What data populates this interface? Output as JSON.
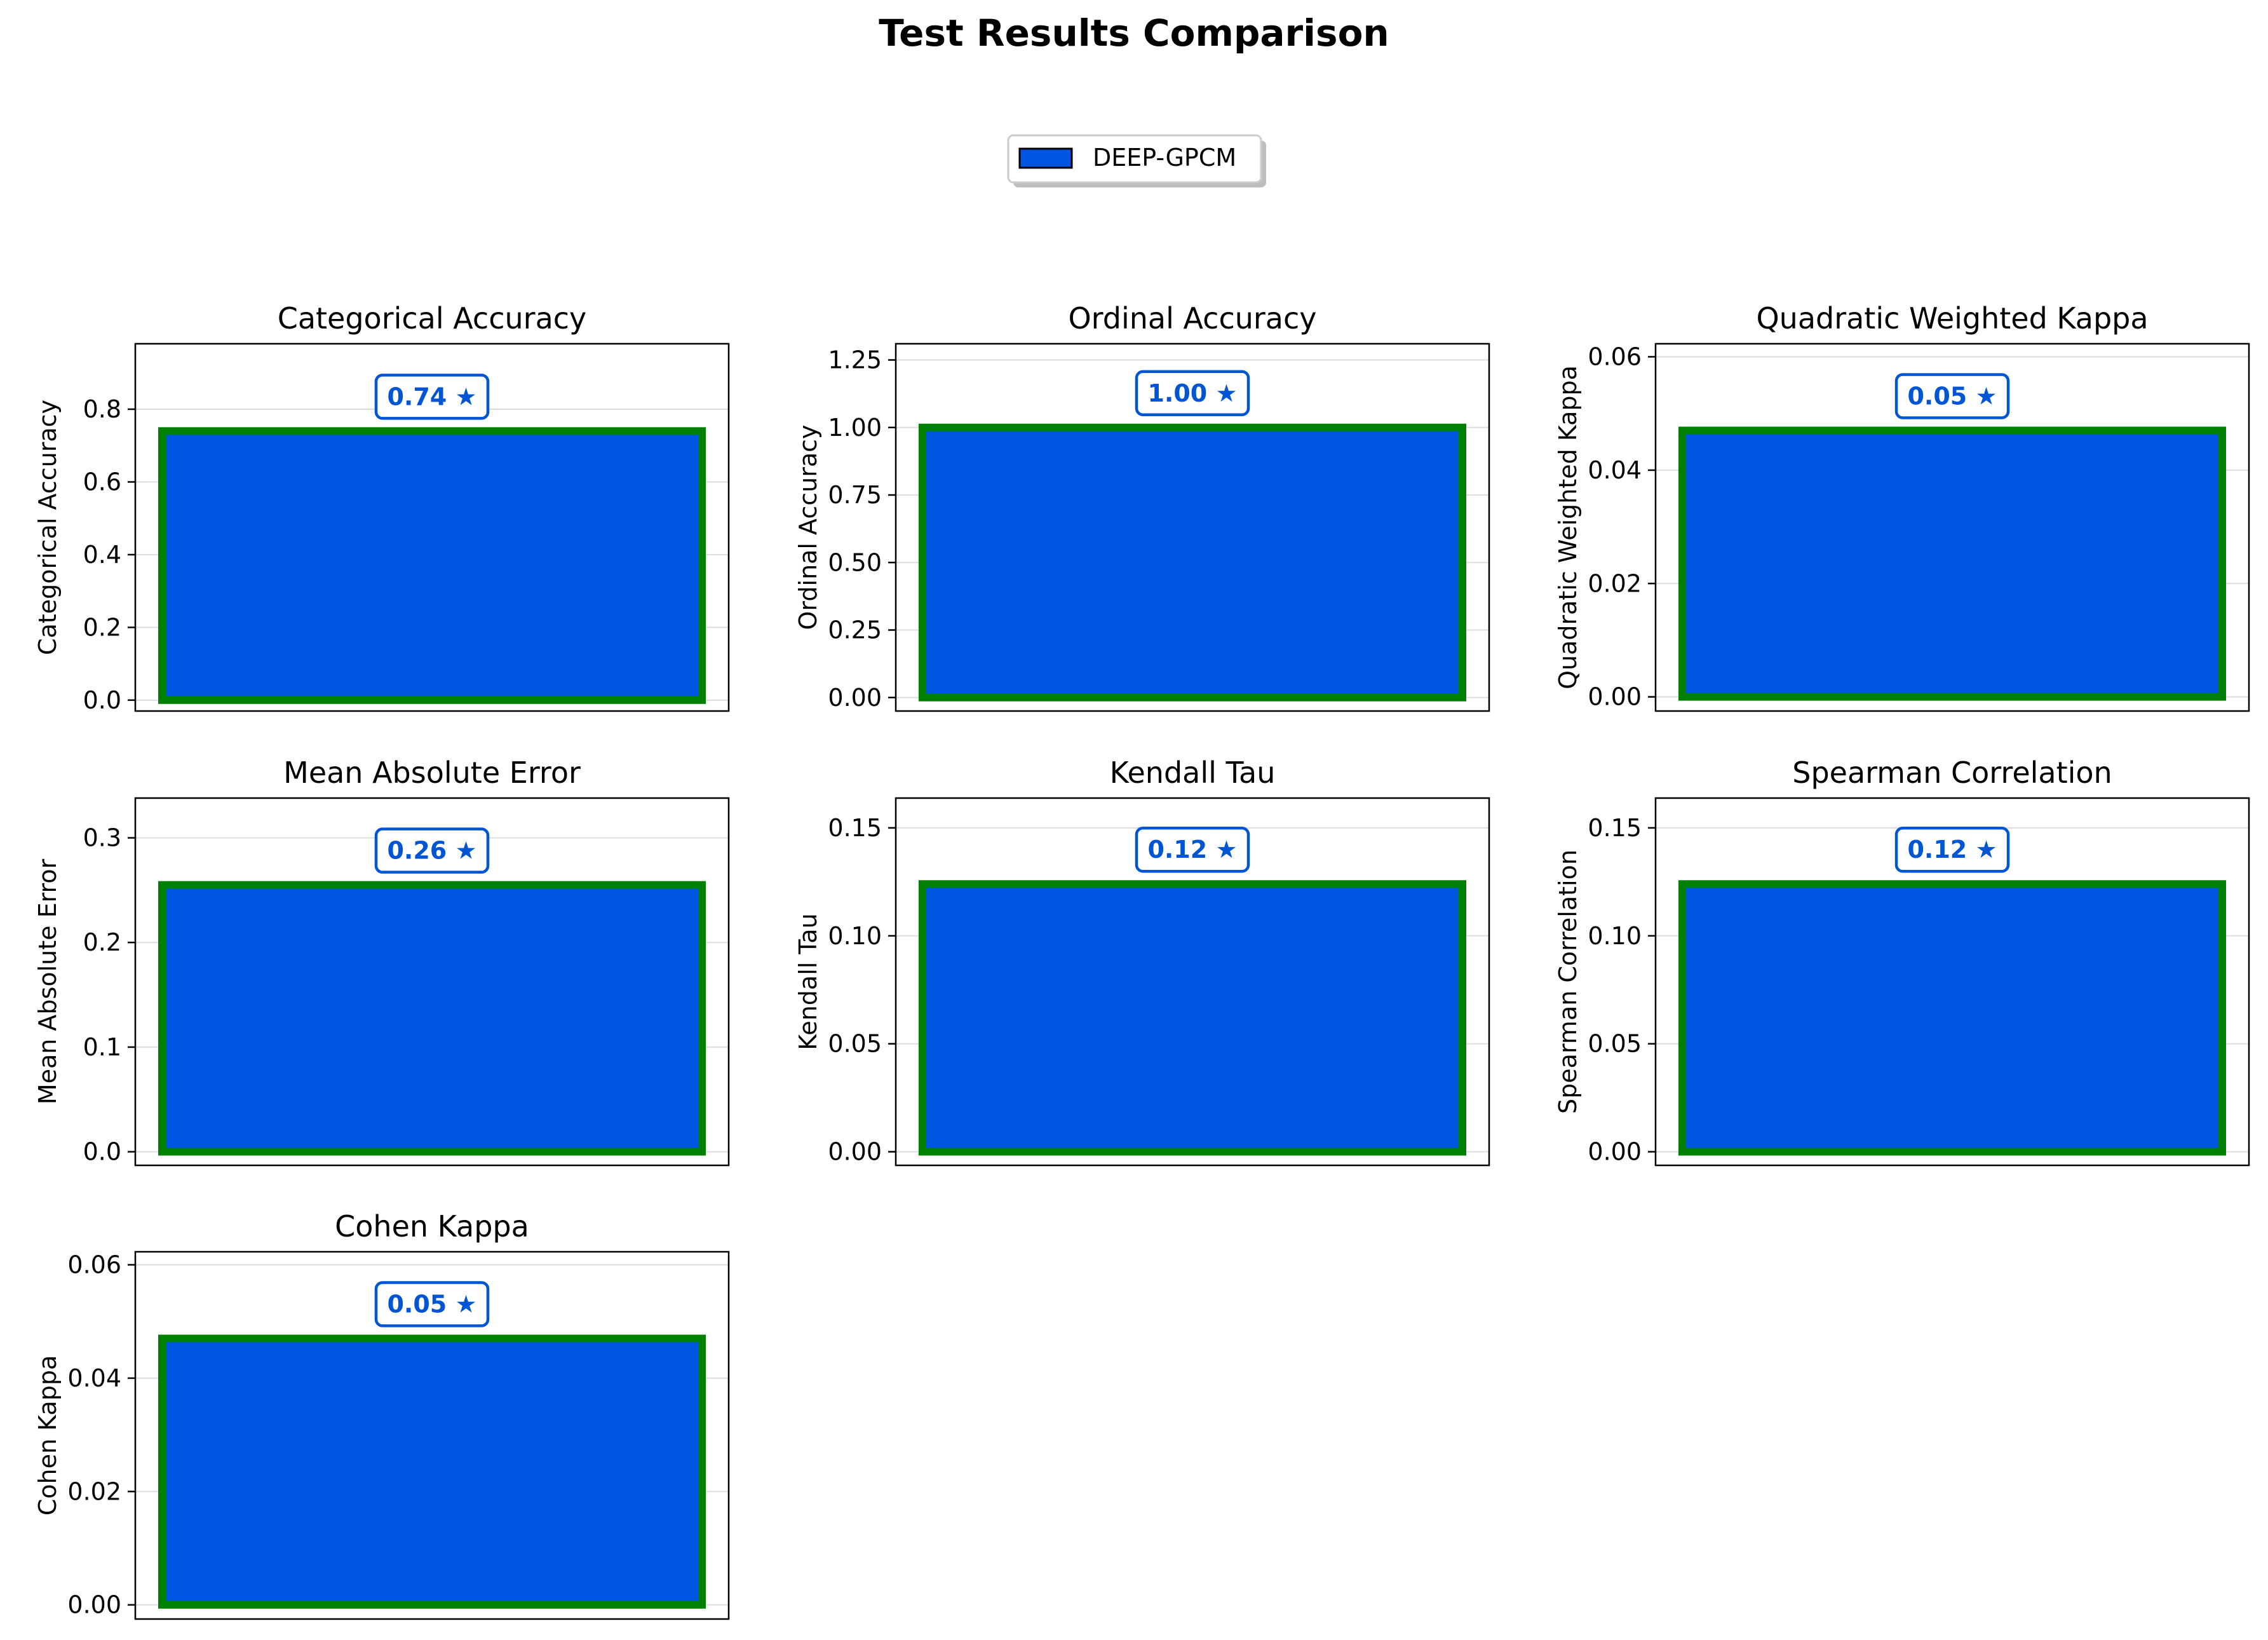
{
  "figure": {
    "title": "Test Results Comparison",
    "legend": {
      "label": "DEEP-GPCM",
      "placement": "top-center"
    }
  },
  "colors": {
    "bar_fill": "#0055e0",
    "bar_edge": "#008000",
    "value_label": "#0055d4",
    "grid": "#dddddd",
    "axes": "#000000"
  },
  "chart_data": [
    {
      "type": "bar",
      "title": "Categorical Accuracy",
      "ylabel": "Categorical Accuracy",
      "series": [
        {
          "name": "DEEP-GPCM",
          "values": [
            0.74
          ]
        }
      ],
      "value_label": "0.74 ★",
      "ylim": [
        -0.03,
        0.98
      ],
      "yticks": [
        0.0,
        0.2,
        0.4,
        0.6,
        0.8
      ],
      "ytick_labels": [
        "0.0",
        "0.2",
        "0.4",
        "0.6",
        "0.8"
      ],
      "grid": true
    },
    {
      "type": "bar",
      "title": "Ordinal Accuracy",
      "ylabel": "Ordinal Accuracy",
      "series": [
        {
          "name": "DEEP-GPCM",
          "values": [
            1.0
          ]
        }
      ],
      "value_label": "1.00 ★",
      "ylim": [
        -0.05,
        1.31
      ],
      "yticks": [
        0.0,
        0.25,
        0.5,
        0.75,
        1.0,
        1.25
      ],
      "ytick_labels": [
        "0.00",
        "0.25",
        "0.50",
        "0.75",
        "1.00",
        "1.25"
      ],
      "grid": true
    },
    {
      "type": "bar",
      "title": "Quadratic Weighted Kappa",
      "ylabel": "Quadratic Weighted Kappa",
      "series": [
        {
          "name": "DEEP-GPCM",
          "values": [
            0.047
          ]
        }
      ],
      "value_label": "0.05 ★",
      "ylim": [
        -0.0025,
        0.0623
      ],
      "yticks": [
        0.0,
        0.02,
        0.04,
        0.06
      ],
      "ytick_labels": [
        "0.00",
        "0.02",
        "0.04",
        "0.06"
      ],
      "grid": true
    },
    {
      "type": "bar",
      "title": "Mean Absolute Error",
      "ylabel": "Mean Absolute Error",
      "series": [
        {
          "name": "DEEP-GPCM",
          "values": [
            0.255
          ]
        }
      ],
      "value_label": "0.26 ★",
      "ylim": [
        -0.013,
        0.338
      ],
      "yticks": [
        0.0,
        0.1,
        0.2,
        0.3
      ],
      "ytick_labels": [
        "0.0",
        "0.1",
        "0.2",
        "0.3"
      ],
      "grid": true
    },
    {
      "type": "bar",
      "title": "Kendall Tau",
      "ylabel": "Kendall Tau",
      "series": [
        {
          "name": "DEEP-GPCM",
          "values": [
            0.124
          ]
        }
      ],
      "value_label": "0.12 ★",
      "ylim": [
        -0.0063,
        0.1638
      ],
      "yticks": [
        0.0,
        0.05,
        0.1,
        0.15
      ],
      "ytick_labels": [
        "0.00",
        "0.05",
        "0.10",
        "0.15"
      ],
      "grid": true
    },
    {
      "type": "bar",
      "title": "Spearman Correlation",
      "ylabel": "Spearman Correlation",
      "series": [
        {
          "name": "DEEP-GPCM",
          "values": [
            0.124
          ]
        }
      ],
      "value_label": "0.12 ★",
      "ylim": [
        -0.0063,
        0.1638
      ],
      "yticks": [
        0.0,
        0.05,
        0.1,
        0.15
      ],
      "ytick_labels": [
        "0.00",
        "0.05",
        "0.10",
        "0.15"
      ],
      "grid": true
    },
    {
      "type": "bar",
      "title": "Cohen Kappa",
      "ylabel": "Cohen Kappa",
      "series": [
        {
          "name": "DEEP-GPCM",
          "values": [
            0.047
          ]
        }
      ],
      "value_label": "0.05 ★",
      "ylim": [
        -0.0025,
        0.0623
      ],
      "yticks": [
        0.0,
        0.02,
        0.04,
        0.06
      ],
      "ytick_labels": [
        "0.00",
        "0.02",
        "0.04",
        "0.06"
      ],
      "grid": true
    }
  ]
}
